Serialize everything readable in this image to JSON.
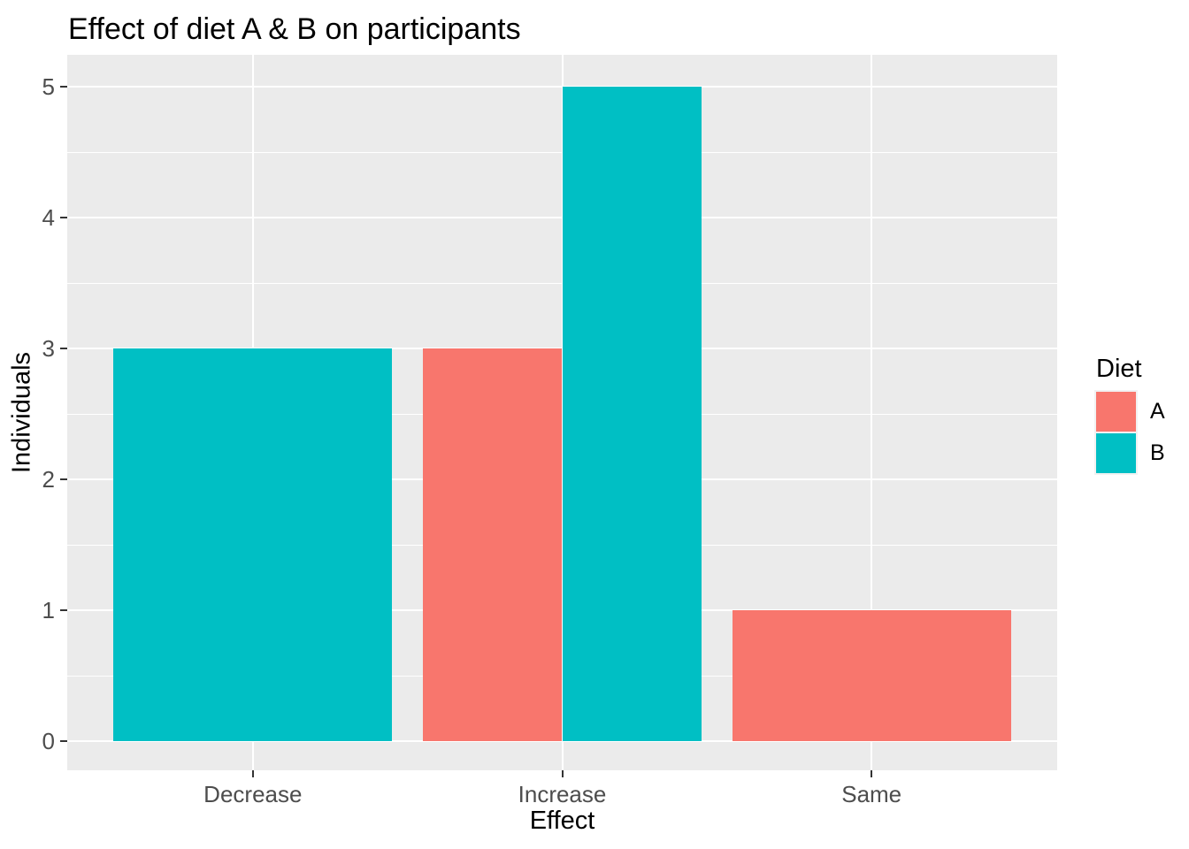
{
  "chart_data": {
    "type": "bar",
    "title": "Effect of diet A & B on participants",
    "xlabel": "Effect",
    "ylabel": "Individuals",
    "categories": [
      "Decrease",
      "Increase",
      "Same"
    ],
    "series": [
      {
        "name": "A",
        "color": "#F8766D",
        "values": [
          null,
          3,
          1
        ]
      },
      {
        "name": "B",
        "color": "#00BFC4",
        "values": [
          3,
          5,
          null
        ]
      }
    ],
    "yticks": [
      0,
      1,
      2,
      3,
      4,
      5
    ],
    "ylim": [
      0,
      5
    ],
    "bar_layout": "dodge-preserve-total",
    "grid": "on",
    "legend": {
      "title": "Diet",
      "position": "right",
      "entries": [
        "A",
        "B"
      ]
    },
    "colors": {
      "panel_background": "#EBEBEB",
      "gridline": "#FFFFFF",
      "tick_label": "#4D4D4D",
      "tick_mark": "#333333",
      "axis_title": "#000000",
      "legend_key_background": "#F2F2F2"
    }
  }
}
